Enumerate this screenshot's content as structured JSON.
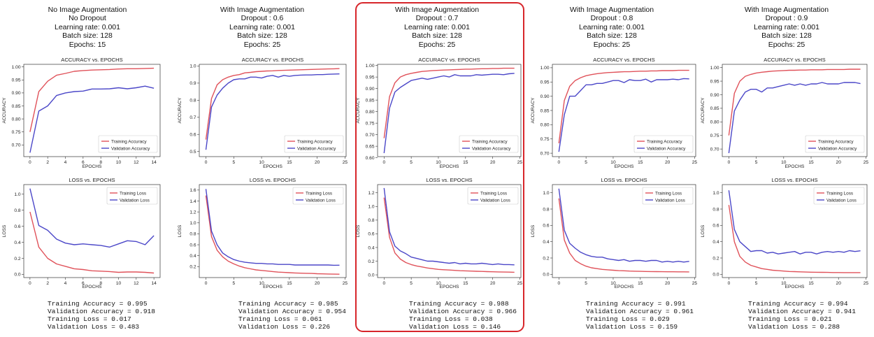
{
  "colors": {
    "train": "#e0525a",
    "val": "#4b47c8",
    "highlight": "#d7262b"
  },
  "experiments": [
    {
      "header": [
        "No Image Augmentation",
        "No Dropout",
        "Learning rate: 0.001",
        "Batch size: 128",
        "Epochs: 15"
      ],
      "stats": [
        "Training Accuracy = 0.995",
        "Validation Accuracy = 0.918",
        "Training Loss = 0.017",
        "Validation Loss = 0.483"
      ],
      "highlighted": false
    },
    {
      "header": [
        "With Image Augmentation",
        "Dropout : 0.6",
        "Learning rate: 0.001",
        "Batch size: 128",
        "Epochs: 25"
      ],
      "stats": [
        "Training Accuracy = 0.985",
        "Validation Accuracy = 0.954",
        "Training Loss = 0.061",
        "Validation Loss = 0.226"
      ],
      "highlighted": false
    },
    {
      "header": [
        "With Image Augmentation",
        "Dropout : 0.7",
        "Learning rate: 0.001",
        "Batch size: 128",
        "Epochs: 25"
      ],
      "stats": [
        "Training Accuracy = 0.988",
        "Validation Accuracy = 0.966",
        "Training Loss = 0.038",
        "Validation Loss = 0.146"
      ],
      "highlighted": true
    },
    {
      "header": [
        "With Image Augmentation",
        "Dropout :  0.8",
        "Learning rate: 0.001",
        "Batch size: 128",
        "Epochs: 25"
      ],
      "stats": [
        "Training Accuracy = 0.991",
        "Validation Accuracy = 0.961",
        "Training Loss = 0.029",
        "Validation Loss = 0.159"
      ],
      "highlighted": false
    },
    {
      "header": [
        "With Image Augmentation",
        "Dropout :  0.9",
        "Learning rate: 0.001",
        "Batch size: 128",
        "Epochs: 25"
      ],
      "stats": [
        "Training Accuracy = 0.994",
        "Validation Accuracy = 0.941",
        "Training Loss = 0.021",
        "Validation Loss = 0.288"
      ],
      "highlighted": false
    }
  ],
  "chart_data": [
    {
      "type": "line",
      "panel": 0,
      "title": "ACCURACY vs. EPOCHS",
      "xlabel": "EPOCHS",
      "ylabel": "ACCURACY",
      "xticks": [
        0,
        2,
        4,
        6,
        8,
        10,
        12,
        14
      ],
      "yticks": [
        0.7,
        0.75,
        0.8,
        0.85,
        0.9,
        0.95,
        1.0
      ],
      "ytick_labels": [
        "0.70",
        "0.75",
        "0.80",
        "0.85",
        "0.90",
        "0.95",
        "1.00"
      ],
      "xlim": [
        -0.7,
        14.7
      ],
      "ylim": [
        0.655,
        1.01
      ],
      "legend": "lower-right",
      "series": [
        {
          "name": "Training Accuracy",
          "y": [
            0.75,
            0.905,
            0.945,
            0.968,
            0.975,
            0.983,
            0.986,
            0.988,
            0.989,
            0.99,
            0.992,
            0.993,
            0.993,
            0.994,
            0.995
          ]
        },
        {
          "name": "Validation Accuracy",
          "y": [
            0.67,
            0.83,
            0.85,
            0.89,
            0.9,
            0.905,
            0.907,
            0.915,
            0.915,
            0.916,
            0.92,
            0.916,
            0.92,
            0.926,
            0.918
          ]
        }
      ]
    },
    {
      "type": "line",
      "panel": 0,
      "title": "LOSS vs. EPOCHS",
      "xlabel": "EPOCHS",
      "ylabel": "LOSS",
      "xticks": [
        0,
        2,
        4,
        6,
        8,
        10,
        12,
        14
      ],
      "yticks": [
        0,
        0.2,
        0.4,
        0.6,
        0.8,
        1.0
      ],
      "ytick_labels": [
        "0.0",
        "0.2",
        "0.4",
        "0.6",
        "0.8",
        "1.0"
      ],
      "xlim": [
        -0.7,
        14.7
      ],
      "ylim": [
        -0.04,
        1.12
      ],
      "legend": "upper-right",
      "series": [
        {
          "name": "Training Loss",
          "y": [
            0.78,
            0.34,
            0.2,
            0.13,
            0.1,
            0.07,
            0.06,
            0.045,
            0.04,
            0.035,
            0.025,
            0.03,
            0.03,
            0.025,
            0.017
          ]
        },
        {
          "name": "Validation Loss",
          "y": [
            1.07,
            0.61,
            0.55,
            0.44,
            0.39,
            0.37,
            0.38,
            0.37,
            0.36,
            0.34,
            0.38,
            0.42,
            0.41,
            0.37,
            0.483
          ]
        }
      ]
    },
    {
      "type": "line",
      "panel": 1,
      "title": "ACCURACY vs. EPOCHS",
      "xlabel": "EPOCHS",
      "ylabel": "ACCURACY",
      "xticks": [
        0,
        5,
        10,
        15,
        20,
        25
      ],
      "yticks": [
        0.5,
        0.6,
        0.7,
        0.8,
        0.9,
        1.0
      ],
      "ytick_labels": [
        "0.5",
        "0.6",
        "0.7",
        "0.8",
        "0.9",
        "1.0"
      ],
      "xlim": [
        -1.2,
        25.2
      ],
      "ylim": [
        0.47,
        1.01
      ],
      "legend": "lower-right",
      "series": [
        {
          "name": "Training Accuracy",
          "y": [
            0.57,
            0.81,
            0.89,
            0.92,
            0.935,
            0.945,
            0.95,
            0.96,
            0.963,
            0.967,
            0.969,
            0.971,
            0.972,
            0.974,
            0.975,
            0.976,
            0.977,
            0.978,
            0.979,
            0.98,
            0.981,
            0.982,
            0.983,
            0.984,
            0.985
          ]
        },
        {
          "name": "Validation Accuracy",
          "y": [
            0.51,
            0.76,
            0.83,
            0.87,
            0.9,
            0.92,
            0.925,
            0.925,
            0.935,
            0.935,
            0.93,
            0.94,
            0.945,
            0.935,
            0.945,
            0.94,
            0.945,
            0.947,
            0.948,
            0.948,
            0.95,
            0.95,
            0.952,
            0.953,
            0.954
          ]
        }
      ]
    },
    {
      "type": "line",
      "panel": 1,
      "title": "LOSS vs. EPOCHS",
      "xlabel": "EPOCHS",
      "ylabel": "LOSS",
      "xticks": [
        0,
        5,
        10,
        15,
        20,
        25
      ],
      "yticks": [
        0.2,
        0.4,
        0.6,
        0.8,
        1.0,
        1.2,
        1.4,
        1.6
      ],
      "ytick_labels": [
        "0.2",
        "0.4",
        "0.6",
        "0.8",
        "1.0",
        "1.2",
        "1.4",
        "1.6"
      ],
      "xlim": [
        -1.2,
        25.2
      ],
      "ylim": [
        0.0,
        1.7
      ],
      "legend": "upper-right",
      "series": [
        {
          "name": "Training Loss",
          "y": [
            1.5,
            0.75,
            0.5,
            0.38,
            0.3,
            0.25,
            0.21,
            0.18,
            0.16,
            0.14,
            0.13,
            0.12,
            0.11,
            0.1,
            0.095,
            0.09,
            0.085,
            0.08,
            0.078,
            0.075,
            0.07,
            0.068,
            0.065,
            0.063,
            0.061
          ]
        },
        {
          "name": "Validation Loss",
          "y": [
            1.62,
            0.85,
            0.6,
            0.45,
            0.38,
            0.33,
            0.3,
            0.28,
            0.27,
            0.26,
            0.26,
            0.25,
            0.25,
            0.24,
            0.24,
            0.24,
            0.23,
            0.23,
            0.23,
            0.23,
            0.23,
            0.23,
            0.23,
            0.225,
            0.226
          ]
        }
      ]
    },
    {
      "type": "line",
      "panel": 2,
      "title": "ACCURACY vs. EPOCHS",
      "xlabel": "EPOCHS",
      "ylabel": "ACCURACY",
      "xticks": [
        0,
        5,
        10,
        15,
        20,
        25
      ],
      "yticks": [
        0.6,
        0.65,
        0.7,
        0.75,
        0.8,
        0.85,
        0.9,
        0.95,
        1.0
      ],
      "ytick_labels": [
        "0.60",
        "0.65",
        "0.70",
        "0.75",
        "0.80",
        "0.85",
        "0.90",
        "0.95",
        "1.00"
      ],
      "xlim": [
        -1.2,
        25.2
      ],
      "ylim": [
        0.605,
        1.005
      ],
      "legend": "lower-right",
      "series": [
        {
          "name": "Training Accuracy",
          "y": [
            0.685,
            0.865,
            0.925,
            0.95,
            0.96,
            0.966,
            0.97,
            0.974,
            0.976,
            0.978,
            0.979,
            0.98,
            0.981,
            0.982,
            0.983,
            0.984,
            0.984,
            0.985,
            0.986,
            0.986,
            0.987,
            0.987,
            0.988,
            0.988,
            0.988
          ]
        },
        {
          "name": "Validation Accuracy",
          "y": [
            0.62,
            0.815,
            0.885,
            0.905,
            0.92,
            0.935,
            0.94,
            0.945,
            0.94,
            0.945,
            0.95,
            0.955,
            0.95,
            0.96,
            0.955,
            0.955,
            0.955,
            0.96,
            0.958,
            0.96,
            0.962,
            0.962,
            0.96,
            0.964,
            0.966
          ]
        }
      ]
    },
    {
      "type": "line",
      "panel": 2,
      "title": "LOSS vs. EPOCHS",
      "xlabel": "EPOCHS",
      "ylabel": "LOSS",
      "xticks": [
        0,
        5,
        10,
        15,
        20,
        25
      ],
      "yticks": [
        0.0,
        0.2,
        0.4,
        0.6,
        0.8,
        1.0,
        1.2
      ],
      "ytick_labels": [
        "0.0",
        "0.2",
        "0.4",
        "0.6",
        "0.8",
        "1.0",
        "1.2"
      ],
      "xlim": [
        -1.2,
        25.2
      ],
      "ylim": [
        -0.04,
        1.32
      ],
      "legend": "upper-right",
      "series": [
        {
          "name": "Training Loss",
          "y": [
            1.13,
            0.55,
            0.32,
            0.23,
            0.18,
            0.15,
            0.13,
            0.115,
            0.1,
            0.09,
            0.08,
            0.075,
            0.07,
            0.065,
            0.06,
            0.058,
            0.055,
            0.052,
            0.05,
            0.047,
            0.045,
            0.043,
            0.041,
            0.04,
            0.038
          ]
        },
        {
          "name": "Validation Loss",
          "y": [
            1.27,
            0.63,
            0.42,
            0.35,
            0.31,
            0.26,
            0.24,
            0.22,
            0.2,
            0.2,
            0.19,
            0.18,
            0.17,
            0.18,
            0.16,
            0.17,
            0.16,
            0.16,
            0.17,
            0.16,
            0.15,
            0.16,
            0.15,
            0.15,
            0.146
          ]
        }
      ]
    },
    {
      "type": "line",
      "panel": 3,
      "title": "ACCURACY vs. EPOCHS",
      "xlabel": "EPOCHS",
      "ylabel": "ACCURACY",
      "xticks": [
        0,
        5,
        10,
        15,
        20,
        25
      ],
      "yticks": [
        0.7,
        0.75,
        0.8,
        0.85,
        0.9,
        0.95,
        1.0
      ],
      "ytick_labels": [
        "0.70",
        "0.75",
        "0.80",
        "0.85",
        "0.90",
        "0.95",
        "1.00"
      ],
      "xlim": [
        -1.2,
        25.2
      ],
      "ylim": [
        0.688,
        1.012
      ],
      "legend": "lower-right",
      "series": [
        {
          "name": "Training Accuracy",
          "y": [
            0.735,
            0.885,
            0.935,
            0.955,
            0.965,
            0.972,
            0.976,
            0.979,
            0.981,
            0.983,
            0.984,
            0.985,
            0.986,
            0.986,
            0.987,
            0.988,
            0.988,
            0.989,
            0.989,
            0.99,
            0.99,
            0.99,
            0.991,
            0.991,
            0.991
          ]
        },
        {
          "name": "Validation Accuracy",
          "y": [
            0.705,
            0.835,
            0.9,
            0.9,
            0.92,
            0.94,
            0.94,
            0.945,
            0.945,
            0.95,
            0.955,
            0.955,
            0.948,
            0.958,
            0.955,
            0.955,
            0.96,
            0.95,
            0.958,
            0.958,
            0.958,
            0.96,
            0.958,
            0.962,
            0.961
          ]
        }
      ]
    },
    {
      "type": "line",
      "panel": 3,
      "title": "LOSS vs. EPOCHS",
      "xlabel": "EPOCHS",
      "ylabel": "LOSS",
      "xticks": [
        0,
        5,
        10,
        15,
        20,
        25
      ],
      "yticks": [
        0.0,
        0.2,
        0.4,
        0.6,
        0.8,
        1.0
      ],
      "ytick_labels": [
        "0.0",
        "0.2",
        "0.4",
        "0.6",
        "0.8",
        "1.0"
      ],
      "xlim": [
        -1.2,
        25.2
      ],
      "ylim": [
        -0.04,
        1.1
      ],
      "legend": "upper-right",
      "series": [
        {
          "name": "Training Loss",
          "y": [
            0.93,
            0.42,
            0.26,
            0.17,
            0.13,
            0.1,
            0.08,
            0.07,
            0.06,
            0.055,
            0.05,
            0.045,
            0.043,
            0.04,
            0.038,
            0.036,
            0.035,
            0.034,
            0.033,
            0.032,
            0.031,
            0.031,
            0.03,
            0.03,
            0.029
          ]
        },
        {
          "name": "Validation Loss",
          "y": [
            1.05,
            0.54,
            0.38,
            0.32,
            0.27,
            0.24,
            0.22,
            0.21,
            0.21,
            0.19,
            0.18,
            0.17,
            0.18,
            0.16,
            0.17,
            0.17,
            0.16,
            0.17,
            0.17,
            0.15,
            0.16,
            0.15,
            0.16,
            0.15,
            0.159
          ]
        }
      ]
    },
    {
      "type": "line",
      "panel": 4,
      "title": "ACCURACY vs. EPOCHS",
      "xlabel": "EPOCHS",
      "ylabel": "ACCURACY",
      "xticks": [
        0,
        5,
        10,
        15,
        20,
        25
      ],
      "yticks": [
        0.7,
        0.75,
        0.8,
        0.85,
        0.9,
        0.95,
        1.0
      ],
      "ytick_labels": [
        "0.70",
        "0.75",
        "0.80",
        "0.85",
        "0.90",
        "0.95",
        "1.00"
      ],
      "xlim": [
        -1.2,
        25.2
      ],
      "ylim": [
        0.672,
        1.012
      ],
      "legend": "lower-right",
      "series": [
        {
          "name": "Training Accuracy",
          "y": [
            0.75,
            0.905,
            0.95,
            0.968,
            0.975,
            0.98,
            0.983,
            0.985,
            0.987,
            0.988,
            0.989,
            0.99,
            0.99,
            0.991,
            0.991,
            0.992,
            0.992,
            0.992,
            0.993,
            0.993,
            0.993,
            0.993,
            0.994,
            0.994,
            0.994
          ]
        },
        {
          "name": "Validation Accuracy",
          "y": [
            0.685,
            0.84,
            0.88,
            0.91,
            0.92,
            0.92,
            0.91,
            0.925,
            0.925,
            0.93,
            0.935,
            0.94,
            0.935,
            0.94,
            0.935,
            0.94,
            0.94,
            0.945,
            0.94,
            0.94,
            0.94,
            0.945,
            0.945,
            0.945,
            0.941
          ]
        }
      ]
    },
    {
      "type": "line",
      "panel": 4,
      "title": "LOSS vs. EPOCHS",
      "xlabel": "EPOCHS",
      "ylabel": "LOSS",
      "xticks": [
        0,
        5,
        10,
        15,
        20,
        25
      ],
      "yticks": [
        0.0,
        0.2,
        0.4,
        0.6,
        0.8,
        1.0
      ],
      "ytick_labels": [
        "0.0",
        "0.2",
        "0.4",
        "0.6",
        "0.8",
        "1.0"
      ],
      "xlim": [
        -1.2,
        25.2
      ],
      "ylim": [
        -0.04,
        1.1
      ],
      "legend": "upper-right",
      "series": [
        {
          "name": "Training Loss",
          "y": [
            0.85,
            0.4,
            0.22,
            0.15,
            0.11,
            0.09,
            0.07,
            0.06,
            0.05,
            0.045,
            0.04,
            0.035,
            0.033,
            0.03,
            0.028,
            0.026,
            0.025,
            0.024,
            0.023,
            0.022,
            0.022,
            0.021,
            0.021,
            0.021,
            0.021
          ]
        },
        {
          "name": "Validation Loss",
          "y": [
            1.03,
            0.55,
            0.4,
            0.34,
            0.28,
            0.29,
            0.29,
            0.26,
            0.27,
            0.25,
            0.26,
            0.27,
            0.28,
            0.25,
            0.27,
            0.27,
            0.25,
            0.27,
            0.28,
            0.27,
            0.28,
            0.27,
            0.29,
            0.28,
            0.288
          ]
        }
      ]
    }
  ]
}
